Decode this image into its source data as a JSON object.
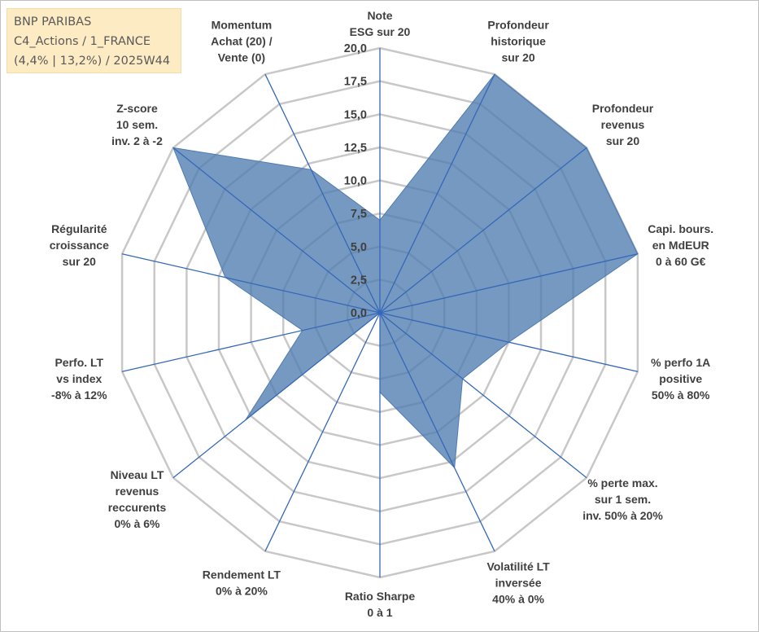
{
  "header": {
    "line1": "BNP PARIBAS",
    "line2": "C4_Actions / 1_FRANCE",
    "line3": "(4,4% | 13,2%) / 2025W44"
  },
  "chart_data": {
    "type": "radar",
    "title": "BNP PARIBAS",
    "rlim": [
      0,
      20
    ],
    "ticks": [
      "0,0",
      "2,5",
      "5,0",
      "7,5",
      "10,0",
      "12,5",
      "15,0",
      "17,5",
      "20,0"
    ],
    "axes": [
      {
        "label": [
          "Note",
          "ESG sur 20"
        ],
        "value": 7.0
      },
      {
        "label": [
          "Profondeur",
          "historique",
          "sur 20"
        ],
        "value": 20.0
      },
      {
        "label": [
          "Profondeur",
          "revenus",
          "sur 20"
        ],
        "value": 20.0
      },
      {
        "label": [
          "Capi. bours.",
          "en MdEUR",
          "0 à 60 G€"
        ],
        "value": 20.0
      },
      {
        "label": [
          "% perfo 1A",
          "positive",
          "50% à 80%"
        ],
        "value": 10.0
      },
      {
        "label": [
          "% perte max.",
          "sur 1 sem.",
          "inv. 50% à 20%"
        ],
        "value": 8.0
      },
      {
        "label": [
          "Volatilité LT",
          "inversée",
          "40% à 0%"
        ],
        "value": 13.0
      },
      {
        "label": [
          "Ratio Sharpe",
          "0 à 1"
        ],
        "value": 6.0
      },
      {
        "label": [
          "Rendement LT",
          "0% à 20%"
        ],
        "value": 0.0
      },
      {
        "label": [
          "Niveau LT",
          "revenus",
          "reccurents",
          "0% à 6%"
        ],
        "value": 13.0
      },
      {
        "label": [
          "Perfo. LT",
          "vs index",
          "-8% à 12%"
        ],
        "value": 6.0
      },
      {
        "label": [
          "Régularité",
          "croissance",
          "sur 20"
        ],
        "value": 12.0
      },
      {
        "label": [
          "Z-score",
          "10 sem.",
          "inv. 2 à -2"
        ],
        "value": 20.0
      },
      {
        "label": [
          "Momentum",
          "Achat (20) /",
          "Vente (0)"
        ],
        "value": 12.0
      }
    ],
    "colors": {
      "fill": "#4f7cb0",
      "line": "#3568b8",
      "grid": "#c8c8c8"
    }
  }
}
